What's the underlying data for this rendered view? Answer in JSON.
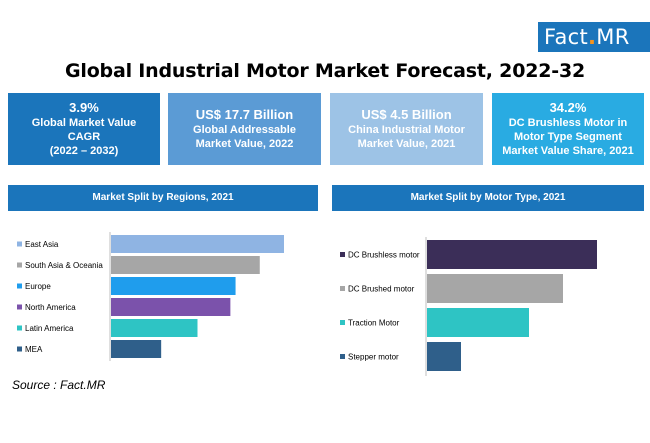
{
  "logo": {
    "text_a": "Fact",
    "text_dot": ".",
    "text_b": "MR"
  },
  "title": "Global Industrial Motor Market Forecast, 2022-32",
  "kpis": [
    {
      "big": "3.9%",
      "lines": [
        "Global Market Value",
        "CAGR",
        "(2022 – 2032)"
      ]
    },
    {
      "big": "US$ 17.7 Billion",
      "lines": [
        "Global Addressable",
        "Market Value, 2022"
      ]
    },
    {
      "big": "US$ 4.5 Billion",
      "lines": [
        "China Industrial Motor",
        "Market Value, 2021"
      ]
    },
    {
      "big": "34.2%",
      "lines": [
        "DC Brushless Motor in",
        "Motor Type Segment",
        "Market Value Share, 2021"
      ]
    }
  ],
  "source": "Source : Fact.MR",
  "colors": {
    "primary": "#1b75bb",
    "kpi2": "#5b9bd5",
    "kpi3": "#9dc3e6",
    "kpi4": "#29abe2"
  },
  "chart_data": [
    {
      "type": "bar",
      "orientation": "horizontal",
      "title": "Market Split by Regions, 2021",
      "categories": [
        "East Asia",
        "South Asia & Oceania",
        "Europe",
        "North America",
        "Latin America",
        "MEA"
      ],
      "values": [
        100,
        86,
        72,
        69,
        50,
        29
      ],
      "colors": [
        "#8fb4e3",
        "#a6a6a6",
        "#1f9ded",
        "#7b52ab",
        "#2ec4c4",
        "#2f5f8a"
      ],
      "axis_values_shown": false
    },
    {
      "type": "bar",
      "orientation": "horizontal",
      "title": "Market Split by Motor Type, 2021",
      "categories": [
        "DC Brushless motor",
        "DC Brushed motor",
        "Traction Motor",
        "Stepper motor"
      ],
      "values": [
        100,
        80,
        60,
        20
      ],
      "colors": [
        "#3b2e58",
        "#a6a6a6",
        "#2ec4c4",
        "#2f5f8a"
      ],
      "axis_values_shown": false
    }
  ]
}
